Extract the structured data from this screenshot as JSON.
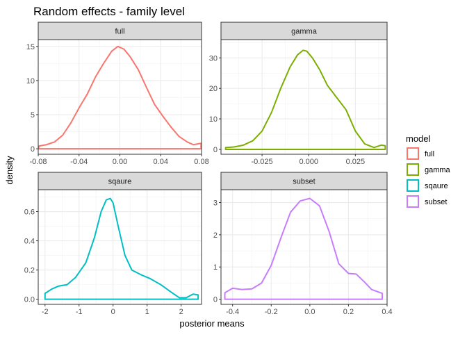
{
  "chart_data": {
    "type": "line",
    "title": "Random effects - family level",
    "xlabel": "posterior means",
    "ylabel": "density",
    "grid": true,
    "legend": {
      "title": "model",
      "placement": "right",
      "entries": [
        "full",
        "gamma",
        "sqaure",
        "subset"
      ]
    },
    "colors": {
      "full": "#F8766D",
      "gamma": "#7CAE00",
      "sqaure": "#00BFC4",
      "subset": "#C77CFF"
    },
    "facets": [
      {
        "label": "full",
        "xlim": [
          -0.08,
          0.08
        ],
        "ylim": [
          -0.8,
          16
        ],
        "xticks": [
          -0.08,
          -0.04,
          0.0,
          0.04,
          0.08
        ],
        "xtick_labels": [
          "-0.08",
          "-0.04",
          "0.00",
          "0.04",
          "0.08"
        ],
        "yticks": [
          0,
          5,
          10,
          15
        ],
        "ytick_labels": [
          "0",
          "5",
          "10",
          "15"
        ],
        "x": [
          -0.0795,
          -0.072,
          -0.064,
          -0.056,
          -0.048,
          -0.04,
          -0.032,
          -0.024,
          -0.016,
          -0.008,
          -0.002,
          0.004,
          0.01,
          0.018,
          0.026,
          0.034,
          0.042,
          0.05,
          0.058,
          0.066,
          0.072,
          0.0795
        ],
        "y": [
          0.4,
          0.6,
          1.0,
          2.0,
          3.8,
          6.0,
          8.0,
          10.5,
          12.5,
          14.3,
          15.0,
          14.6,
          13.5,
          11.6,
          9.0,
          6.5,
          4.8,
          3.2,
          1.8,
          1.0,
          0.6,
          0.8
        ]
      },
      {
        "label": "gamma",
        "xlim": [
          -0.047,
          0.042
        ],
        "ylim": [
          -1.6,
          36
        ],
        "xticks": [
          -0.025,
          0.0,
          0.025
        ],
        "xtick_labels": [
          "-0.025",
          "0.000",
          "0.025"
        ],
        "yticks": [
          0,
          10,
          20,
          30
        ],
        "ytick_labels": [
          "0",
          "10",
          "20",
          "30"
        ],
        "x": [
          -0.0445,
          -0.04,
          -0.035,
          -0.03,
          -0.025,
          -0.02,
          -0.015,
          -0.01,
          -0.006,
          -0.003,
          -0.001,
          0.002,
          0.006,
          0.01,
          0.015,
          0.02,
          0.025,
          0.03,
          0.035,
          0.039,
          0.041
        ],
        "y": [
          0.6,
          0.8,
          1.4,
          2.8,
          6.0,
          12.0,
          20.0,
          27.0,
          31.0,
          32.5,
          32.2,
          30.0,
          26.0,
          21.0,
          17.0,
          13.0,
          6.0,
          1.8,
          0.6,
          1.4,
          1.2
        ]
      },
      {
        "label": "sqaure",
        "xlim": [
          -2.2,
          2.6
        ],
        "ylim": [
          -0.035,
          0.75
        ],
        "xticks": [
          -2,
          -1,
          0,
          1,
          2
        ],
        "xtick_labels": [
          "-2",
          "-1",
          "0",
          "1",
          "2"
        ],
        "yticks": [
          0.0,
          0.2,
          0.4,
          0.6
        ],
        "ytick_labels": [
          "0.0",
          "0.2",
          "0.4",
          "0.6"
        ],
        "x": [
          -2.0,
          -1.8,
          -1.6,
          -1.35,
          -1.1,
          -0.8,
          -0.55,
          -0.35,
          -0.2,
          -0.08,
          0.0,
          0.15,
          0.35,
          0.55,
          0.8,
          1.1,
          1.4,
          1.7,
          1.95,
          2.15,
          2.35,
          2.5
        ],
        "y": [
          0.04,
          0.07,
          0.09,
          0.1,
          0.15,
          0.25,
          0.42,
          0.6,
          0.68,
          0.69,
          0.66,
          0.5,
          0.3,
          0.2,
          0.17,
          0.14,
          0.1,
          0.05,
          0.01,
          0.01,
          0.035,
          0.03
        ]
      },
      {
        "label": "subset",
        "xlim": [
          -0.46,
          0.4
        ],
        "ylim": [
          -0.16,
          3.4
        ],
        "xticks": [
          -0.4,
          -0.2,
          0.0,
          0.2,
          0.4
        ],
        "xtick_labels": [
          "-0.4",
          "-0.2",
          "0.0",
          "0.2",
          "0.4"
        ],
        "yticks": [
          0,
          1,
          2,
          3
        ],
        "ytick_labels": [
          "0",
          "1",
          "2",
          "3"
        ],
        "x": [
          -0.44,
          -0.4,
          -0.35,
          -0.3,
          -0.25,
          -0.2,
          -0.15,
          -0.1,
          -0.05,
          0.0,
          0.05,
          0.1,
          0.15,
          0.2,
          0.24,
          0.28,
          0.32,
          0.375
        ],
        "y": [
          0.2,
          0.34,
          0.3,
          0.32,
          0.5,
          1.05,
          1.9,
          2.7,
          3.05,
          3.13,
          2.9,
          2.1,
          1.1,
          0.8,
          0.78,
          0.55,
          0.3,
          0.18
        ]
      }
    ]
  }
}
